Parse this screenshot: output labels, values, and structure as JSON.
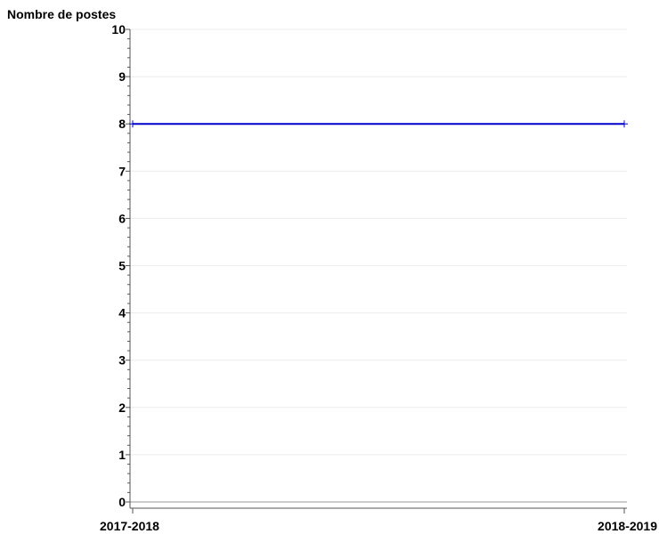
{
  "chart_data": {
    "type": "line",
    "title": "",
    "ylabel": "Nombre de postes",
    "xlabel": "",
    "categories": [
      "2017-2018",
      "2018-2019"
    ],
    "series": [
      {
        "values": [
          8,
          8
        ],
        "color": "#0000cc"
      }
    ],
    "ylim": [
      0,
      10
    ],
    "yticks": [
      0,
      1,
      2,
      3,
      4,
      5,
      6,
      7,
      8,
      9,
      10
    ],
    "grid": true,
    "legend": "none"
  }
}
